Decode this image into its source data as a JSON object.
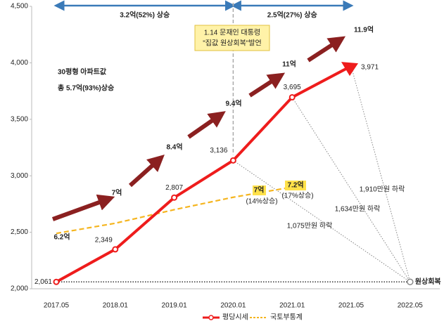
{
  "chart_data": {
    "type": "line",
    "categories": [
      "2017.05",
      "2018.01",
      "2019.01",
      "2020.01",
      "2021.01",
      "2021.05",
      "2022.05"
    ],
    "series": [
      {
        "name": "평당시세",
        "color": "#ee1c1c",
        "values": [
          2061,
          2349,
          2807,
          3136,
          3695,
          3971,
          null
        ],
        "value_labels": [
          "2,061",
          "2,349",
          "2,807",
          "3,136",
          "3,695",
          "3,971",
          null
        ]
      },
      {
        "name": "국토부통계",
        "color": "#f5b51f",
        "values": [
          2490,
          2580,
          2700,
          2810,
          2900,
          null,
          null
        ]
      }
    ],
    "ylim": [
      2000,
      4500
    ],
    "yticks": [
      {
        "value": 2000,
        "label": "2,000"
      },
      {
        "value": 2500,
        "label": "2,500"
      },
      {
        "value": 3000,
        "label": "3,000"
      },
      {
        "value": 3500,
        "label": "3,500"
      },
      {
        "value": 4000,
        "label": "4,000"
      },
      {
        "value": 4500,
        "label": "4,500"
      }
    ],
    "annotations": {
      "periods": [
        "3.2억(52%) 상승",
        "2.5억(27%) 상승"
      ],
      "callout": [
        "1.14 문재인 대통령",
        "\"집값 원상회복\"발언"
      ],
      "headline": "30평형 아파트값",
      "subheadline": "총 5.7억(93%)상승",
      "price_steps": [
        "6.2억",
        "7억",
        "8.4억",
        "9.4억",
        "11억",
        "11.9억"
      ],
      "stats": [
        "7억",
        "(14%상승)",
        "7.2억",
        "(17%상승)"
      ],
      "declines": [
        "1,075만원 하락",
        "1,634만원 하락",
        "1,910만원 하락"
      ],
      "endpoint": "원상회복"
    }
  }
}
